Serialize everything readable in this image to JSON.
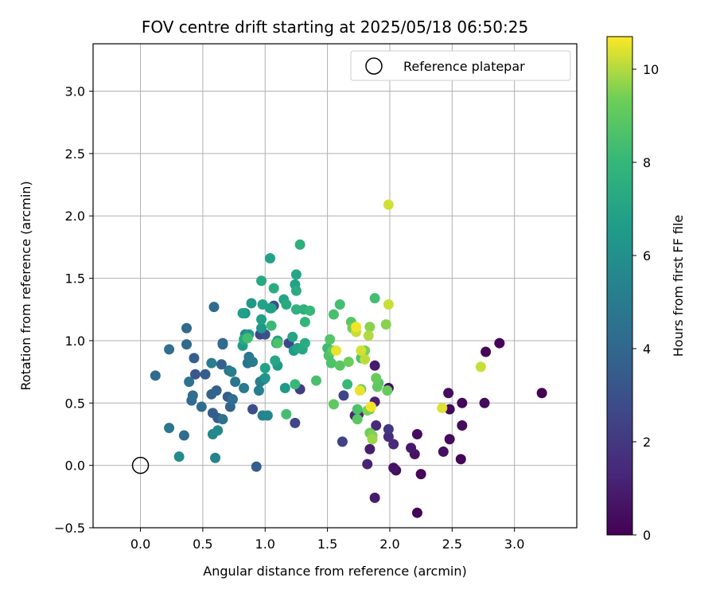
{
  "chart_data": {
    "type": "scatter",
    "title": "FOV centre drift starting at 2025/05/18 06:50:25",
    "xlabel": "Angular distance from reference (arcmin)",
    "ylabel": "Rotation from reference (arcmin)",
    "xlim": [
      -0.38,
      3.5
    ],
    "ylim": [
      -0.5,
      3.38
    ],
    "xticks": [
      0.0,
      0.5,
      1.0,
      1.5,
      2.0,
      2.5,
      3.0
    ],
    "xtick_labels": [
      "0.0",
      "0.5",
      "1.0",
      "1.5",
      "2.0",
      "2.5",
      "3.0"
    ],
    "yticks": [
      -0.5,
      0.0,
      0.5,
      1.0,
      1.5,
      2.0,
      2.5,
      3.0
    ],
    "ytick_labels": [
      "−0.5",
      "0.0",
      "0.5",
      "1.0",
      "1.5",
      "2.0",
      "2.5",
      "3.0"
    ],
    "grid": true,
    "legend_position": "top-right",
    "legend": {
      "label": "Reference platepar"
    },
    "reference_point": {
      "x": 0.0,
      "y": 0.0
    },
    "colorbar": {
      "label": "Hours from first FF file",
      "colormap": "viridis",
      "range": [
        0,
        10.7
      ],
      "ticks": [
        0,
        2,
        4,
        6,
        8,
        10
      ],
      "tick_labels": [
        "0",
        "2",
        "4",
        "6",
        "8",
        "10"
      ]
    },
    "points": [
      [
        3.22,
        0.58,
        0.0
      ],
      [
        2.88,
        0.98,
        0.1
      ],
      [
        2.77,
        0.91,
        0.2
      ],
      [
        2.76,
        0.5,
        0.3
      ],
      [
        2.58,
        0.5,
        0.2
      ],
      [
        2.58,
        0.32,
        0.3
      ],
      [
        2.57,
        0.05,
        0.1
      ],
      [
        2.48,
        0.45,
        0.2
      ],
      [
        2.47,
        0.58,
        0.4
      ],
      [
        2.48,
        0.21,
        0.3
      ],
      [
        2.43,
        0.11,
        0.5
      ],
      [
        2.25,
        -0.07,
        0.2
      ],
      [
        2.22,
        -0.38,
        0.1
      ],
      [
        2.22,
        0.25,
        0.4
      ],
      [
        2.2,
        0.09,
        0.6
      ],
      [
        2.17,
        0.14,
        0.8
      ],
      [
        2.05,
        -0.04,
        0.4
      ],
      [
        2.03,
        -0.02,
        0.6
      ],
      [
        2.03,
        0.17,
        1.4
      ],
      [
        1.99,
        0.23,
        1.6
      ],
      [
        1.99,
        0.29,
        2.0
      ],
      [
        1.99,
        0.62,
        0.4
      ],
      [
        1.88,
        -0.26,
        0.9
      ],
      [
        1.88,
        0.8,
        0.9
      ],
      [
        1.88,
        0.51,
        1.1
      ],
      [
        1.89,
        0.32,
        1.4
      ],
      [
        1.84,
        0.13,
        1.0
      ],
      [
        1.82,
        0.01,
        1.2
      ],
      [
        1.75,
        0.41,
        1.3
      ],
      [
        1.72,
        0.4,
        1.5
      ],
      [
        1.63,
        0.56,
        2.5
      ],
      [
        1.62,
        0.19,
        2.4
      ],
      [
        1.28,
        0.61,
        2.2
      ],
      [
        1.24,
        0.34,
        2.6
      ],
      [
        1.19,
        0.98,
        2.6
      ],
      [
        0.96,
        1.05,
        2.6
      ],
      [
        0.93,
        -0.01,
        3.6
      ],
      [
        0.9,
        0.45,
        2.9
      ],
      [
        1.0,
        1.05,
        3.0
      ],
      [
        1.07,
        1.28,
        3.0
      ],
      [
        0.59,
        1.27,
        4.2
      ],
      [
        0.37,
        1.1,
        4.1
      ],
      [
        0.37,
        0.97,
        4.0
      ],
      [
        0.43,
        0.86,
        3.6
      ],
      [
        0.44,
        0.73,
        3.3
      ],
      [
        0.52,
        0.73,
        3.6
      ],
      [
        0.57,
        0.57,
        3.8
      ],
      [
        0.61,
        0.6,
        3.7
      ],
      [
        0.58,
        0.42,
        3.6
      ],
      [
        0.62,
        0.38,
        3.5
      ],
      [
        0.66,
        0.37,
        4.6
      ],
      [
        0.7,
        0.55,
        3.5
      ],
      [
        0.72,
        0.47,
        3.8
      ],
      [
        0.74,
        0.53,
        4.3
      ],
      [
        0.65,
        0.81,
        3.7
      ],
      [
        0.66,
        0.97,
        4.2
      ],
      [
        0.66,
        0.98,
        3.6
      ],
      [
        0.71,
        0.76,
        4.7
      ],
      [
        0.73,
        0.75,
        5.2
      ],
      [
        0.76,
        0.67,
        4.7
      ],
      [
        0.83,
        0.62,
        5.0
      ],
      [
        0.86,
        0.82,
        4.6
      ],
      [
        0.87,
        0.87,
        4.8
      ],
      [
        0.9,
        0.83,
        5.0
      ],
      [
        0.95,
        0.6,
        5.2
      ],
      [
        0.96,
        0.67,
        5.2
      ],
      [
        0.98,
        0.4,
        5.4
      ],
      [
        0.99,
        0.69,
        4.9
      ],
      [
        1.02,
        0.4,
        5.6
      ],
      [
        0.49,
        0.47,
        4.2
      ],
      [
        0.41,
        0.52,
        4.1
      ],
      [
        0.42,
        0.56,
        4.3
      ],
      [
        0.39,
        0.67,
        4.6
      ],
      [
        0.12,
        0.72,
        4.1
      ],
      [
        0.23,
        0.93,
        4.4
      ],
      [
        0.23,
        0.3,
        4.8
      ],
      [
        0.35,
        0.24,
        4.2
      ],
      [
        0.31,
        0.07,
        5.8
      ],
      [
        0.58,
        0.25,
        5.6
      ],
      [
        0.6,
        0.06,
        5.4
      ],
      [
        0.62,
        0.28,
        5.7
      ],
      [
        0.57,
        0.82,
        5.1
      ],
      [
        0.84,
        1.05,
        5.7
      ],
      [
        0.87,
        1.05,
        6.4
      ],
      [
        0.89,
        1.3,
        6.4
      ],
      [
        0.82,
        1.22,
        6.8
      ],
      [
        0.84,
        1.22,
        6.2
      ],
      [
        0.82,
        0.96,
        6.6
      ],
      [
        0.83,
        1.01,
        7.3
      ],
      [
        0.97,
        1.1,
        6.4
      ],
      [
        0.97,
        1.17,
        6.8
      ],
      [
        1.0,
        0.78,
        6.9
      ],
      [
        1.0,
        0.7,
        6.2
      ],
      [
        1.04,
        1.26,
        6.3
      ],
      [
        1.04,
        1.66,
        6.9
      ],
      [
        1.05,
        1.26,
        6.8
      ],
      [
        0.97,
        1.48,
        7.2
      ],
      [
        0.98,
        1.29,
        6.9
      ],
      [
        1.07,
        1.42,
        7.4
      ],
      [
        1.08,
        0.84,
        7.1
      ],
      [
        1.09,
        0.98,
        7.1
      ],
      [
        1.1,
        1.0,
        6.8
      ],
      [
        1.1,
        0.8,
        6.5
      ],
      [
        1.15,
        1.33,
        7.0
      ],
      [
        1.17,
        1.29,
        7.3
      ],
      [
        1.16,
        0.62,
        6.5
      ],
      [
        1.22,
        1.03,
        7.0
      ],
      [
        1.23,
        0.92,
        6.6
      ],
      [
        1.24,
        1.45,
        6.9
      ],
      [
        1.25,
        1.4,
        7.4
      ],
      [
        1.25,
        1.53,
        7.1
      ],
      [
        1.26,
        0.94,
        7.0
      ],
      [
        1.25,
        1.25,
        7.7
      ],
      [
        1.28,
        1.77,
        7.6
      ],
      [
        1.3,
        0.93,
        7.2
      ],
      [
        1.31,
        1.25,
        7.6
      ],
      [
        1.32,
        0.98,
        7.4
      ],
      [
        1.32,
        1.15,
        7.9
      ],
      [
        1.36,
        1.24,
        8.0
      ],
      [
        1.41,
        0.68,
        8.5
      ],
      [
        1.24,
        0.65,
        8.1
      ],
      [
        1.17,
        0.41,
        8.4
      ],
      [
        1.05,
        1.12,
        8.2
      ],
      [
        1.1,
        0.98,
        8.6
      ],
      [
        0.86,
        1.02,
        8.4
      ],
      [
        1.5,
        0.94,
        8.2
      ],
      [
        1.51,
        0.88,
        8.6
      ],
      [
        1.52,
        1.01,
        8.8
      ],
      [
        1.54,
        0.92,
        9.0
      ],
      [
        1.53,
        0.82,
        8.6
      ],
      [
        1.55,
        1.21,
        8.5
      ],
      [
        1.55,
        0.49,
        9.0
      ],
      [
        1.6,
        1.29,
        8.4
      ],
      [
        1.6,
        0.8,
        8.9
      ],
      [
        1.66,
        0.65,
        8.1
      ],
      [
        1.67,
        0.83,
        9.3
      ],
      [
        1.69,
        1.15,
        8.9
      ],
      [
        1.7,
        1.1,
        9.4
      ],
      [
        1.74,
        0.45,
        8.6
      ],
      [
        1.74,
        0.37,
        8.9
      ],
      [
        1.77,
        0.61,
        9.2
      ],
      [
        1.77,
        0.86,
        8.6
      ],
      [
        1.8,
        0.92,
        9.4
      ],
      [
        1.82,
        0.44,
        9.5
      ],
      [
        1.84,
        0.26,
        9.3
      ],
      [
        1.84,
        1.11,
        9.6
      ],
      [
        1.84,
        0.45,
        9.2
      ],
      [
        1.86,
        0.24,
        9.5
      ],
      [
        1.86,
        0.21,
        9.8
      ],
      [
        1.88,
        1.34,
        8.4
      ],
      [
        1.89,
        0.7,
        9.2
      ],
      [
        1.9,
        0.63,
        9.0
      ],
      [
        1.91,
        0.66,
        8.7
      ],
      [
        1.97,
        1.13,
        9.6
      ],
      [
        1.98,
        0.6,
        9.2
      ],
      [
        1.99,
        1.29,
        10.2
      ],
      [
        1.99,
        2.09,
        10.3
      ],
      [
        1.83,
        1.04,
        10.0
      ],
      [
        1.8,
        0.85,
        10.1
      ],
      [
        1.77,
        0.92,
        10.3
      ],
      [
        1.73,
        1.07,
        10.2
      ],
      [
        1.73,
        1.11,
        10.6
      ],
      [
        1.57,
        0.92,
        10.5
      ],
      [
        1.76,
        0.6,
        10.5
      ],
      [
        1.85,
        0.47,
        10.6
      ],
      [
        2.42,
        0.46,
        10.4
      ],
      [
        2.73,
        0.79,
        10.2
      ]
    ]
  }
}
